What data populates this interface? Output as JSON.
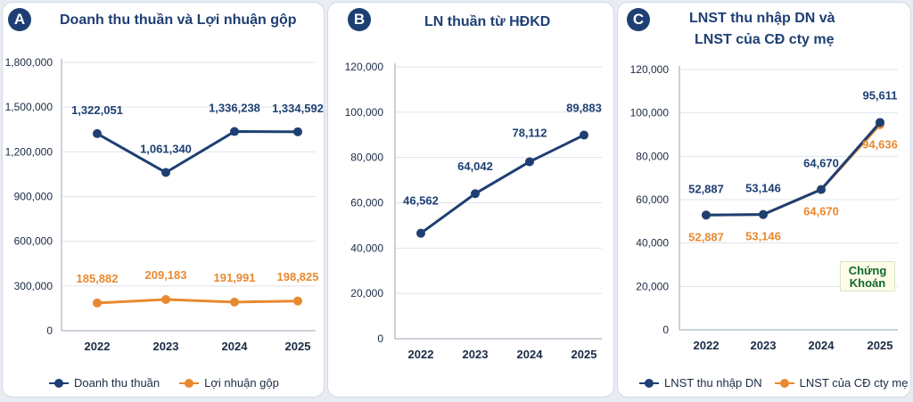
{
  "colors": {
    "navy": "#1e3f73",
    "orange": "#e8892f",
    "axis_text": "#1a2a44",
    "grid": "#dfe4ea"
  },
  "panels": [
    {
      "badge": "A",
      "title_lines": [
        "Doanh thu thuần và Lợi nhuận gộp"
      ]
    },
    {
      "badge": "B",
      "title_lines": [
        "LN thuần từ HĐKD"
      ]
    },
    {
      "badge": "C",
      "title_lines": [
        "LNST thu nhập DN và",
        "LNST của CĐ cty mẹ"
      ]
    }
  ],
  "legends": {
    "a": [
      "Doanh thu thuần",
      "Lợi nhuận gộp"
    ],
    "c": [
      "LNST thu nhập DN",
      "LNST của CĐ cty mẹ"
    ]
  },
  "watermark": {
    "line1": "Chứng",
    "line2": "Khoán"
  },
  "chart_data": [
    {
      "type": "line",
      "title": "Doanh thu thuần và Lợi nhuận gộp",
      "categories": [
        "2022",
        "2023",
        "2024",
        "2025"
      ],
      "ylim": [
        0,
        1800000
      ],
      "yticks": [
        0,
        300000,
        600000,
        900000,
        1200000,
        1500000,
        1800000
      ],
      "ytick_labels": [
        "0",
        "300,000",
        "600,000",
        "900,000",
        "1,200,000",
        "1,500,000",
        "1,800,000"
      ],
      "grid": true,
      "legend": "bottom",
      "series": [
        {
          "name": "Doanh thu thuần",
          "color": "#1e3f73",
          "values": [
            1322051,
            1061340,
            1336238,
            1334592
          ],
          "labels": [
            "1,322,051",
            "1,061,340",
            "1,336,238",
            "1,334,592"
          ]
        },
        {
          "name": "Lợi nhuận gộp",
          "color": "#e8892f",
          "values": [
            185882,
            209183,
            191991,
            198825
          ],
          "labels": [
            "185,882",
            "209,183",
            "191,991",
            "198,825"
          ]
        }
      ]
    },
    {
      "type": "line",
      "title": "LN thuần từ HĐKD",
      "categories": [
        "2022",
        "2023",
        "2024",
        "2025"
      ],
      "ylim": [
        0,
        120000
      ],
      "yticks": [
        0,
        20000,
        40000,
        60000,
        80000,
        100000,
        120000
      ],
      "ytick_labels": [
        "0",
        "20,000",
        "40,000",
        "60,000",
        "80,000",
        "100,000",
        "120,000"
      ],
      "grid": true,
      "legend": "none",
      "series": [
        {
          "color": "#1e3f73",
          "values": [
            46562,
            64042,
            78112,
            89883
          ],
          "labels": [
            "46,562",
            "64,042",
            "78,112",
            "89,883"
          ]
        }
      ]
    },
    {
      "type": "line",
      "title": "LNST thu nhập DN và LNST của CĐ cty mẹ",
      "categories": [
        "2022",
        "2023",
        "2024",
        "2025"
      ],
      "ylim": [
        0,
        120000
      ],
      "yticks": [
        0,
        20000,
        40000,
        60000,
        80000,
        100000,
        120000
      ],
      "ytick_labels": [
        "0",
        "20,000",
        "40,000",
        "60,000",
        "80,000",
        "100,000",
        "120,000"
      ],
      "grid": true,
      "legend": "bottom",
      "series": [
        {
          "name": "LNST thu nhập DN",
          "color": "#1e3f73",
          "values": [
            52887,
            53146,
            64670,
            95611
          ],
          "labels": [
            "52,887",
            "53,146",
            "64,670",
            "95,611"
          ]
        },
        {
          "name": "LNST của CĐ cty mẹ",
          "color": "#e8892f",
          "values": [
            52887,
            53146,
            64670,
            94636
          ],
          "labels": [
            "52,887",
            "53,146",
            "64,670",
            "94,636"
          ]
        }
      ]
    }
  ]
}
